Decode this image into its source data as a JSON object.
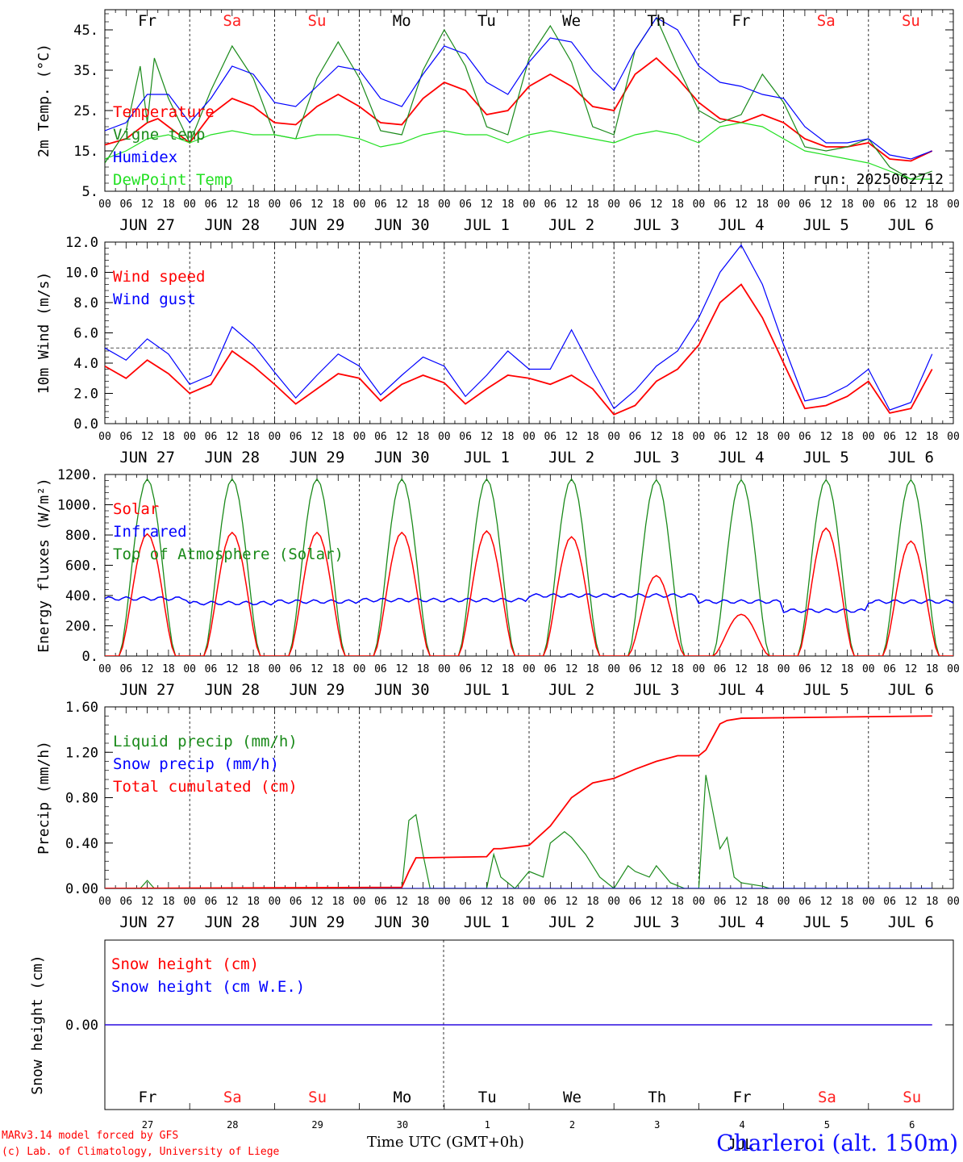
{
  "run_label": "run: 2025062712",
  "station": "Charleroi (alt. 150m)",
  "x_axis_title": "Time UTC (GMT+0h)",
  "credit_line1": "MARv3.14 model forced by GFS",
  "credit_line2": "(c) Lab. of Climatology, University of Liege",
  "colors": {
    "red": "#ff0000",
    "blue": "#0000ff",
    "green": "#1a8a1a",
    "lightgreen": "#22e022",
    "weekend": "#ff2020",
    "weekday": "#000000"
  },
  "days": [
    {
      "dow": "Fr",
      "date": "JUN 27",
      "num": "27",
      "weekend": false
    },
    {
      "dow": "Sa",
      "date": "JUN 28",
      "num": "28",
      "weekend": true
    },
    {
      "dow": "Su",
      "date": "JUN 29",
      "num": "29",
      "weekend": true
    },
    {
      "dow": "Mo",
      "date": "JUN 30",
      "num": "30",
      "weekend": false
    },
    {
      "dow": "Tu",
      "date": "JUL  1",
      "num": "1",
      "weekend": false
    },
    {
      "dow": "We",
      "date": "JUL  2",
      "num": "2",
      "weekend": false
    },
    {
      "dow": "Th",
      "date": "JUL  3",
      "num": "3",
      "weekend": false
    },
    {
      "dow": "Fr",
      "date": "JUL  4",
      "num": "4",
      "weekend": false
    },
    {
      "dow": "Sa",
      "date": "JUL  5",
      "num": "5",
      "weekend": true
    },
    {
      "dow": "Su",
      "date": "JUL  6",
      "num": "6",
      "weekend": true
    }
  ],
  "hour_ticks": [
    "00",
    "06",
    "12",
    "18"
  ],
  "bottom_month": "JUL",
  "chart_data": [
    {
      "id": "temp",
      "type": "line",
      "ylabel": "2m Temp. (°C)",
      "ylim": [
        5,
        50
      ],
      "yticks": [
        5,
        15,
        25,
        35,
        45
      ],
      "ytick_labels": [
        "5.",
        "15.",
        "25.",
        "35.",
        "45."
      ],
      "x_unit": "hours since JUN 27 00 UTC",
      "series": [
        {
          "name": "Temperature",
          "color": "red",
          "x": [
            0,
            6,
            12,
            15,
            18,
            24,
            30,
            36,
            42,
            48,
            54,
            60,
            66,
            72,
            78,
            84,
            90,
            96,
            102,
            108,
            114,
            120,
            126,
            132,
            138,
            144,
            150,
            156,
            162,
            168,
            174,
            180,
            186,
            192,
            198,
            204,
            210,
            216,
            222,
            228,
            234
          ],
          "y": [
            16.5,
            18,
            22,
            23,
            21,
            17,
            24,
            28,
            26,
            22,
            21.5,
            26,
            29,
            26,
            22,
            21.5,
            28,
            32,
            30,
            24,
            25,
            31,
            34,
            31,
            26,
            25,
            34,
            38,
            33,
            27,
            23,
            22,
            24,
            22,
            18,
            16,
            16,
            17,
            13,
            12.5,
            15
          ]
        },
        {
          "name": "Vigne temp",
          "color": "green",
          "x": [
            0,
            6,
            10,
            12,
            14,
            18,
            24,
            30,
            36,
            42,
            48,
            54,
            60,
            66,
            72,
            78,
            84,
            90,
            96,
            102,
            108,
            114,
            120,
            126,
            132,
            138,
            144,
            150,
            156,
            162,
            168,
            174,
            180,
            186,
            192,
            198,
            204,
            210,
            216,
            222,
            228,
            234
          ],
          "y": [
            12,
            20,
            36,
            22,
            38,
            28,
            17,
            30,
            41,
            33,
            19,
            18,
            33,
            42,
            33,
            20,
            19,
            35,
            45,
            36,
            21,
            19,
            38,
            46,
            37,
            21,
            19,
            40,
            48,
            36,
            25,
            22,
            24,
            34,
            27,
            16,
            15,
            16,
            18,
            11,
            8,
            10
          ]
        },
        {
          "name": "Humidex",
          "color": "blue",
          "x": [
            0,
            6,
            12,
            18,
            24,
            30,
            36,
            42,
            48,
            54,
            60,
            66,
            72,
            78,
            84,
            90,
            96,
            102,
            108,
            114,
            120,
            126,
            132,
            138,
            144,
            150,
            156,
            162,
            168,
            174,
            180,
            186,
            192,
            198,
            204,
            210,
            216,
            222,
            228,
            234
          ],
          "y": [
            20,
            22,
            29,
            29,
            22,
            28,
            36,
            34,
            27,
            26,
            31,
            36,
            35,
            28,
            26,
            34,
            41,
            39,
            32,
            29,
            37,
            43,
            42,
            35,
            30,
            40,
            48,
            45,
            36,
            32,
            31,
            29,
            28,
            21,
            17,
            17,
            18,
            14,
            13,
            15
          ]
        },
        {
          "name": "DewPoint Temp",
          "color": "lightgreen",
          "x": [
            0,
            6,
            12,
            18,
            24,
            30,
            36,
            42,
            48,
            54,
            60,
            66,
            72,
            78,
            84,
            90,
            96,
            102,
            108,
            114,
            120,
            126,
            132,
            138,
            144,
            150,
            156,
            162,
            168,
            174,
            180,
            186,
            192,
            198,
            204,
            210,
            216,
            222,
            228,
            234
          ],
          "y": [
            13,
            15,
            18,
            19,
            17,
            19,
            20,
            19,
            19,
            18,
            19,
            19,
            18,
            16,
            17,
            19,
            20,
            19,
            19,
            17,
            19,
            20,
            19,
            18,
            17,
            19,
            20,
            19,
            17,
            21,
            22,
            21,
            18,
            15,
            14,
            13,
            12,
            10,
            8,
            8
          ]
        }
      ]
    },
    {
      "id": "wind",
      "type": "line",
      "ylabel": "10m Wind (m/s)",
      "ylim": [
        0,
        12
      ],
      "yticks": [
        0,
        2,
        4,
        6,
        8,
        10,
        12
      ],
      "ytick_labels": [
        "0.0",
        "2.0",
        "4.0",
        "6.0",
        "8.0",
        "10.0",
        "12.0"
      ],
      "reference_line": 5,
      "series": [
        {
          "name": "Wind speed",
          "color": "red",
          "x": [
            0,
            6,
            12,
            18,
            24,
            30,
            36,
            42,
            48,
            54,
            60,
            66,
            72,
            78,
            84,
            90,
            96,
            102,
            108,
            114,
            120,
            126,
            132,
            138,
            144,
            150,
            156,
            162,
            168,
            174,
            180,
            186,
            192,
            198,
            204,
            210,
            216,
            222,
            228,
            234
          ],
          "y": [
            3.8,
            3,
            4.2,
            3.3,
            2,
            2.6,
            4.8,
            3.8,
            2.6,
            1.3,
            2.3,
            3.3,
            3,
            1.5,
            2.6,
            3.2,
            2.7,
            1.3,
            2.3,
            3.2,
            3,
            2.6,
            3.2,
            2.3,
            0.6,
            1.2,
            2.8,
            3.6,
            5.2,
            8,
            9.2,
            7,
            4,
            1,
            1.2,
            1.8,
            2.8,
            0.7,
            1,
            3.6
          ]
        },
        {
          "name": "Wind gust",
          "color": "blue",
          "x": [
            0,
            6,
            12,
            18,
            24,
            30,
            36,
            42,
            48,
            54,
            60,
            66,
            72,
            78,
            84,
            90,
            96,
            102,
            108,
            114,
            120,
            126,
            132,
            138,
            144,
            150,
            156,
            162,
            168,
            174,
            180,
            186,
            192,
            198,
            204,
            210,
            216,
            222,
            228,
            234
          ],
          "y": [
            5,
            4.2,
            5.6,
            4.6,
            2.6,
            3.2,
            6.4,
            5.2,
            3.4,
            1.7,
            3.2,
            4.6,
            3.8,
            1.9,
            3.2,
            4.4,
            3.8,
            1.8,
            3.2,
            4.8,
            3.6,
            3.6,
            6.2,
            3.5,
            1,
            2.2,
            3.8,
            4.8,
            7,
            10,
            11.8,
            9.2,
            5.2,
            1.5,
            1.8,
            2.5,
            3.6,
            0.9,
            1.4,
            4.6
          ]
        }
      ]
    },
    {
      "id": "energy",
      "type": "line",
      "ylabel": "Energy fluxes (W/m²)",
      "ylim": [
        0,
        1200
      ],
      "yticks": [
        0,
        200,
        400,
        600,
        800,
        1000,
        1200
      ],
      "ytick_labels": [
        "0.",
        "200.",
        "400.",
        "600.",
        "800.",
        "1000.",
        "1200."
      ],
      "daily_peaks": {
        "Top of Atmosphere (Solar)": [
          1170,
          1170,
          1170,
          1170,
          1170,
          1170,
          1165,
          1165,
          1165,
          1165
        ],
        "Solar": [
          850,
          860,
          860,
          860,
          870,
          830,
          560,
          290,
          890,
          800
        ],
        "Infrared": [
          380,
          350,
          360,
          370,
          370,
          400,
          400,
          360,
          300,
          360
        ]
      },
      "series": [
        {
          "name": "Solar",
          "color": "red"
        },
        {
          "name": "Infrared",
          "color": "blue"
        },
        {
          "name": "Top of Atmosphere (Solar)",
          "color": "green"
        }
      ]
    },
    {
      "id": "precip",
      "type": "line",
      "ylabel": "Precip (mm/h)",
      "ylim": [
        0,
        1.6
      ],
      "yticks": [
        0,
        0.4,
        0.8,
        1.2,
        1.6
      ],
      "ytick_labels": [
        "0.00",
        "0.40",
        "0.80",
        "1.20",
        "1.60"
      ],
      "series": [
        {
          "name": "Liquid precip (mm/h)",
          "color": "green",
          "x": [
            0,
            10,
            12,
            14,
            84,
            86,
            88,
            90,
            92,
            96,
            108,
            110,
            112,
            116,
            120,
            124,
            126,
            130,
            132,
            136,
            140,
            144,
            148,
            150,
            154,
            156,
            160,
            164,
            168,
            170,
            174,
            176,
            178,
            180,
            186,
            188,
            190,
            234
          ],
          "y": [
            0,
            0,
            0.07,
            0,
            0,
            0.6,
            0.65,
            0.3,
            0,
            0,
            0,
            0.3,
            0.1,
            0,
            0.15,
            0.1,
            0.4,
            0.5,
            0.45,
            0.3,
            0.1,
            0,
            0.2,
            0.15,
            0.1,
            0.2,
            0.05,
            0,
            0,
            1.0,
            0.35,
            0.45,
            0.1,
            0.05,
            0.02,
            0,
            0,
            0
          ]
        },
        {
          "name": "Snow precip (mm/h)",
          "color": "blue",
          "x": [
            0,
            234
          ],
          "y": [
            0,
            0
          ]
        },
        {
          "name": "Total cumulated (cm)",
          "color": "red",
          "x": [
            0,
            84,
            86,
            88,
            90,
            108,
            110,
            112,
            120,
            126,
            132,
            138,
            144,
            150,
            156,
            162,
            168,
            170,
            174,
            176,
            180,
            234
          ],
          "y": [
            0,
            0.01,
            0.15,
            0.27,
            0.27,
            0.28,
            0.35,
            0.35,
            0.38,
            0.55,
            0.8,
            0.93,
            0.97,
            1.05,
            1.12,
            1.17,
            1.17,
            1.22,
            1.45,
            1.48,
            1.5,
            1.52
          ]
        }
      ]
    },
    {
      "id": "snow",
      "type": "line",
      "ylabel": "Snow height (cm)",
      "ylim": [
        -1,
        1
      ],
      "yticks": [
        0
      ],
      "ytick_labels": [
        "0.00"
      ],
      "series": [
        {
          "name": "Snow height (cm)",
          "color": "red",
          "x": [
            0,
            234
          ],
          "y": [
            0,
            0
          ]
        },
        {
          "name": "Snow height (cm W.E.)",
          "color": "blue",
          "x": [
            0,
            234
          ],
          "y": [
            0,
            0
          ]
        }
      ]
    }
  ]
}
